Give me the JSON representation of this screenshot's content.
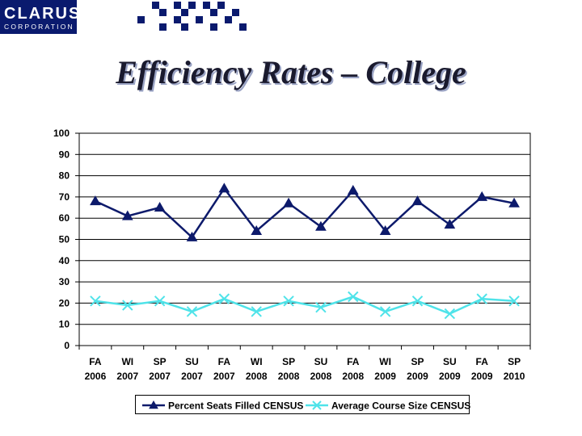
{
  "header": {
    "logo_name": "CLARUS",
    "logo_sub": "CORPORATION",
    "title": "Efficiency Rates – College"
  },
  "colors": {
    "brand": "#0a1a6e",
    "series1": "#0d1a6b",
    "series2": "#4fe3e9"
  },
  "chart_data": {
    "type": "line",
    "title": "Efficiency Rates – College",
    "xlabel": "",
    "ylabel": "",
    "ylim": [
      0,
      100
    ],
    "yticks": [
      0,
      10,
      20,
      30,
      40,
      50,
      60,
      70,
      80,
      90,
      100
    ],
    "grid": true,
    "legend_position": "bottom",
    "categories": [
      [
        "FA",
        "2006"
      ],
      [
        "WI",
        "2007"
      ],
      [
        "SP",
        "2007"
      ],
      [
        "SU",
        "2007"
      ],
      [
        "FA",
        "2007"
      ],
      [
        "WI",
        "2008"
      ],
      [
        "SP",
        "2008"
      ],
      [
        "SU",
        "2008"
      ],
      [
        "FA",
        "2008"
      ],
      [
        "WI",
        "2009"
      ],
      [
        "SP",
        "2009"
      ],
      [
        "SU",
        "2009"
      ],
      [
        "FA",
        "2009"
      ],
      [
        "SP",
        "2010"
      ]
    ],
    "series": [
      {
        "name": "Percent Seats Filled CENSUS",
        "marker": "triangle",
        "color": "#0d1a6b",
        "values": [
          68,
          61,
          65,
          51,
          74,
          54,
          67,
          56,
          73,
          54,
          68,
          57,
          70,
          67
        ]
      },
      {
        "name": "Average Course Size CENSUS",
        "marker": "x",
        "color": "#4fe3e9",
        "values": [
          21,
          19,
          21,
          16,
          22,
          16,
          21,
          18,
          23,
          16,
          21,
          15,
          22,
          21
        ]
      }
    ]
  }
}
